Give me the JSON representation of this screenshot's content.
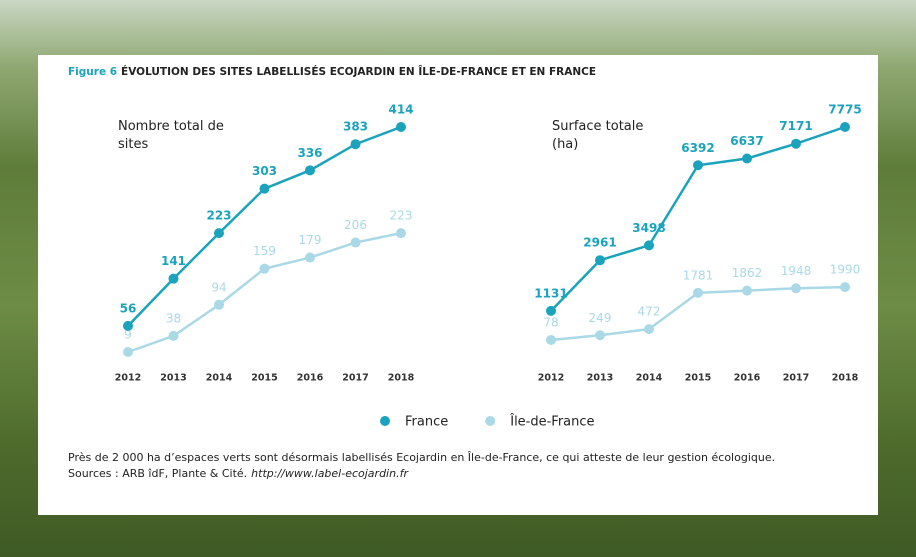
{
  "figure": {
    "label": "Figure 6",
    "title": "ÉVOLUTION DES SITES LABELLISÉS ECOJARDIN EN ÎLE-DE-FRANCE ET EN FRANCE"
  },
  "chart_data": [
    {
      "type": "line",
      "ylabel": "Nombre total de sites",
      "x": [
        2012,
        2013,
        2014,
        2015,
        2016,
        2017,
        2018
      ],
      "series": [
        {
          "name": "France",
          "color": "#1ba3bd",
          "values": [
            56,
            141,
            223,
            303,
            336,
            383,
            414
          ]
        },
        {
          "name": "Île-de-France",
          "color": "#a9d9e6",
          "values": [
            9,
            38,
            94,
            159,
            179,
            206,
            223
          ]
        }
      ]
    },
    {
      "type": "line",
      "ylabel": "Surface totale (ha)",
      "x": [
        2012,
        2013,
        2014,
        2015,
        2016,
        2017,
        2018
      ],
      "series": [
        {
          "color": "#1ba3bd",
          "values": [
            1131,
            2961,
            3498,
            6392,
            6637,
            7171,
            7775
          ]
        },
        {
          "color": "#a9d9e6",
          "values": [
            78,
            249,
            472,
            1781,
            1862,
            1948,
            1990
          ]
        }
      ]
    }
  ],
  "caption": "Près de 2 000 ha d’espaces verts sont désormais labellisés Ecojardin en Île-de-France, ce qui atteste de leur gestion écologique.",
  "sources": {
    "text": "Sources : ARB îdF, Plante & Cité.",
    "url": "http://www.label-ecojardin.fr"
  }
}
